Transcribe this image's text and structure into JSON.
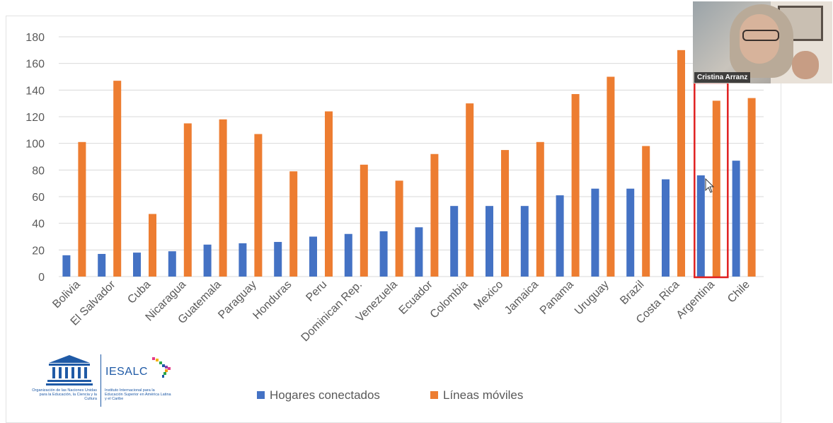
{
  "chart_data": {
    "type": "bar",
    "categories": [
      "Bolivia",
      "El Salvador",
      "Cuba",
      "Nicaragua",
      "Guatemala",
      "Paraguay",
      "Honduras",
      "Peru",
      "Dominican Rep.",
      "Venezuela",
      "Ecuador",
      "Colombia",
      "Mexico",
      "Jamaica",
      "Panama",
      "Uruguay",
      "Brazil",
      "Costa Rica",
      "Argentina",
      "Chile"
    ],
    "series": [
      {
        "name": "Hogares conectados",
        "color": "#4472c4",
        "values": [
          16,
          17,
          18,
          19,
          24,
          25,
          26,
          30,
          32,
          34,
          37,
          53,
          53,
          53,
          61,
          66,
          66,
          73,
          76,
          87
        ]
      },
      {
        "name": "Líneas móviles",
        "color": "#ed7d31",
        "values": [
          101,
          147,
          47,
          115,
          118,
          107,
          79,
          124,
          84,
          72,
          92,
          130,
          95,
          101,
          137,
          150,
          98,
          170,
          132,
          134
        ]
      }
    ],
    "ylim": [
      0,
      180
    ],
    "yticks": [
      0,
      20,
      40,
      60,
      80,
      100,
      120,
      140,
      160,
      180
    ],
    "grid": true,
    "legend_position": "bottom",
    "highlight_category": "Argentina",
    "highlight_color": "#e02020"
  },
  "logo": {
    "unesco_org": "Organización de las Naciones Unidas para la Educación, la Ciencia y la Cultura",
    "iesalc_name": "IESALC",
    "iesalc_sub": "Instituto Internacional para la Educación Superior en América Latina y el Caribe"
  },
  "webcam": {
    "name": "Cristina Arranz"
  }
}
